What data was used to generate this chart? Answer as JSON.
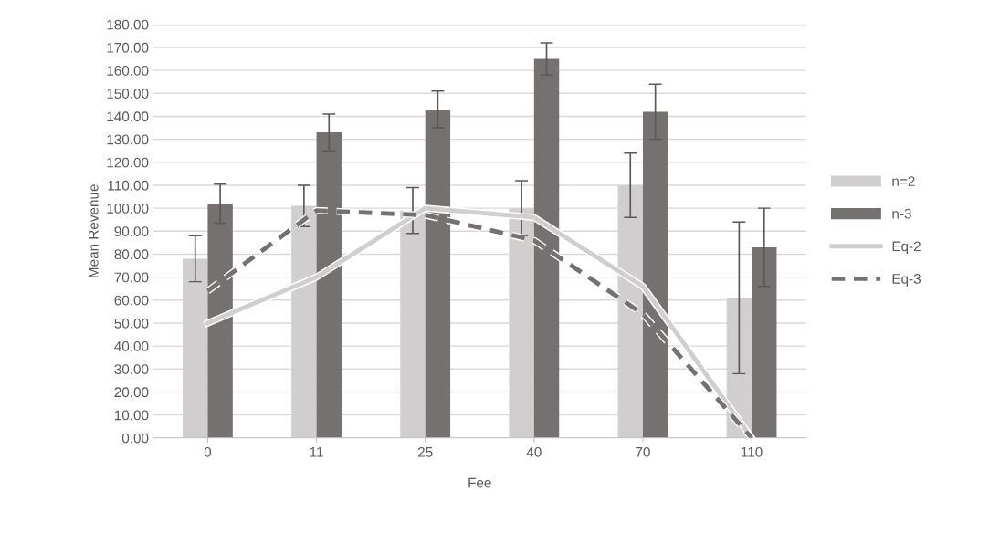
{
  "chart_data": {
    "type": "bar",
    "xlabel": "Fee",
    "ylabel": "Mean Revenue",
    "categories": [
      "0",
      "11",
      "25",
      "40",
      "70",
      "110"
    ],
    "series": [
      {
        "name": "n=2",
        "color": "#d0cece",
        "values": [
          78,
          101,
          99,
          100,
          110,
          61
        ],
        "errors": [
          10,
          9,
          10,
          12,
          14,
          33
        ]
      },
      {
        "name": "n-3",
        "color": "#767171",
        "values": [
          102,
          133,
          143,
          165,
          142,
          83
        ],
        "errors": [
          8.5,
          8,
          8,
          7,
          12,
          17
        ]
      },
      {
        "name": "Eq-2",
        "type": "line",
        "color": "#d0cece",
        "line_style": "solid",
        "values": [
          50,
          70,
          100,
          96,
          66,
          0
        ]
      },
      {
        "name": "Eq-3",
        "type": "line",
        "color": "#767171",
        "line_style": "dashed",
        "values": [
          64,
          99,
          97,
          86,
          54,
          0
        ]
      }
    ],
    "ylim": [
      0,
      180
    ],
    "yticks": [
      {
        "value": 0,
        "label": "0.00"
      },
      {
        "value": 10,
        "label": "10.00"
      },
      {
        "value": 20,
        "label": "20.00"
      },
      {
        "value": 30,
        "label": "30.00"
      },
      {
        "value": 40,
        "label": "40.00"
      },
      {
        "value": 50,
        "label": "50.00"
      },
      {
        "value": 60,
        "label": "60.00"
      },
      {
        "value": 70,
        "label": "70.00"
      },
      {
        "value": 80,
        "label": "80.00"
      },
      {
        "value": 90,
        "label": "90.00"
      },
      {
        "value": 100,
        "label": "100.00"
      },
      {
        "value": 110,
        "label": "110.00"
      },
      {
        "value": 120,
        "label": "120.00"
      },
      {
        "value": 130,
        "label": "130.00"
      },
      {
        "value": 140,
        "label": "140.00"
      },
      {
        "value": 150,
        "label": "150.00"
      },
      {
        "value": 160,
        "label": "160.00"
      },
      {
        "value": 170,
        "label": "170.00"
      },
      {
        "value": 180,
        "label": "180.00"
      }
    ],
    "grid": "y",
    "legend": "right"
  }
}
